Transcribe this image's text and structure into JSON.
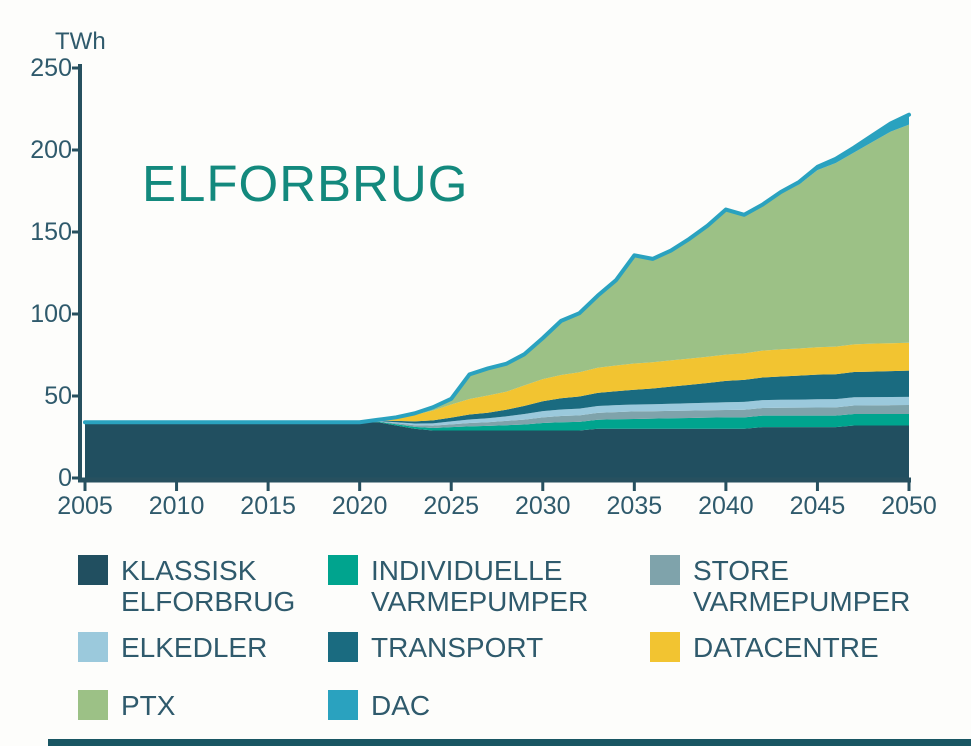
{
  "chart": {
    "unit_label": "TWh",
    "title": "ELFORBRUG",
    "title_color": "#13897d",
    "text_color": "#2f5a6c",
    "axis_color": "#27505f",
    "background": "#fdfdfb"
  },
  "chart_data": {
    "type": "area",
    "stacked": true,
    "title": "ELFORBRUG",
    "ylabel": "TWh",
    "xlabel": "",
    "xlim": [
      2005,
      2050
    ],
    "ylim": [
      0,
      250
    ],
    "xticks": [
      2005,
      2010,
      2015,
      2020,
      2025,
      2030,
      2035,
      2040,
      2045,
      2050
    ],
    "yticks": [
      0,
      50,
      100,
      150,
      200,
      250
    ],
    "grid": false,
    "legend_position": "bottom",
    "outline_color": "#2aa2bf",
    "outline_width": 4,
    "years": [
      2005,
      2010,
      2015,
      2020,
      2021,
      2022,
      2023,
      2024,
      2025,
      2026,
      2027,
      2028,
      2029,
      2030,
      2031,
      2032,
      2033,
      2034,
      2035,
      2036,
      2037,
      2038,
      2039,
      2040,
      2041,
      2042,
      2043,
      2044,
      2045,
      2046,
      2047,
      2048,
      2049,
      2050
    ],
    "series": [
      {
        "id": "klassisk-elforbrug",
        "name": "KLASSISK ELFORBRUG",
        "color": "#214f60",
        "values": [
          34,
          34,
          34,
          34,
          34,
          32,
          30,
          29,
          29,
          29,
          29,
          29,
          29,
          29,
          29,
          29,
          30,
          30,
          30,
          30,
          30,
          30,
          30,
          30,
          30,
          31,
          31,
          31,
          31,
          31,
          32,
          32,
          32,
          32
        ]
      },
      {
        "id": "individuelle-varmepumper",
        "name": "INDIVIDUELLE VARMEPUMPER",
        "color": "#00a48e",
        "values": [
          0,
          0,
          0,
          0,
          0.3,
          0.8,
          1.2,
          1.5,
          2,
          2.5,
          2.8,
          3.2,
          3.6,
          4.5,
          5,
          5.2,
          5.5,
          5.8,
          6,
          6.2,
          6.4,
          6.6,
          6.8,
          7,
          7,
          7,
          7,
          7,
          7,
          7,
          7,
          7,
          7,
          7
        ]
      },
      {
        "id": "store-varmepumper",
        "name": "STORE VARMEPUMPER",
        "color": "#7fa3ab",
        "values": [
          0,
          0,
          0,
          0,
          0.2,
          0.6,
          1,
          1.4,
          1.7,
          2,
          2.2,
          2.6,
          3,
          3.5,
          3.8,
          4,
          4.2,
          4.4,
          4.6,
          4.5,
          4.5,
          4.5,
          4.5,
          4.5,
          4.6,
          4.7,
          4.8,
          4.9,
          5,
          5.1,
          5.2,
          5.3,
          5.4,
          5.5
        ]
      },
      {
        "id": "elkedler",
        "name": "ELKEDLER",
        "color": "#9bc9dc",
        "values": [
          0,
          0,
          0,
          0,
          0.2,
          0.6,
          1,
          1.4,
          1.8,
          2.2,
          2.4,
          2.8,
          3.4,
          3.8,
          4,
          4.1,
          4.2,
          4.2,
          4.2,
          4.3,
          4.4,
          4.5,
          4.6,
          4.7,
          4.8,
          4.8,
          4.9,
          4.9,
          5,
          5,
          5,
          5,
          5,
          5
        ]
      },
      {
        "id": "transport",
        "name": "TRANSPORT",
        "color": "#1a6b80",
        "values": [
          0,
          0,
          0,
          0,
          0.3,
          0.8,
          1.3,
          1.8,
          2.3,
          3,
          3.4,
          4,
          5,
          6,
          6.8,
          7.4,
          8,
          8.5,
          9,
          9.6,
          10.4,
          11.2,
          12,
          13,
          13.4,
          13.8,
          14.2,
          14.6,
          15,
          15.2,
          15.4,
          15.6,
          15.8,
          16
        ]
      },
      {
        "id": "datacentre",
        "name": "DATACENTRE",
        "color": "#f2c431",
        "values": [
          0,
          0,
          0,
          0,
          0.5,
          2,
          4,
          6,
          8,
          9.5,
          10.5,
          11,
          12.5,
          13.5,
          14.2,
          14.8,
          15.3,
          15.7,
          16,
          16,
          16,
          16,
          16,
          16,
          16.2,
          16.4,
          16.5,
          16.6,
          16.7,
          16.8,
          16.9,
          17,
          17,
          17
        ]
      },
      {
        "id": "ptx",
        "name": "PTX",
        "color": "#9cc186",
        "values": [
          0,
          0,
          0,
          0,
          0,
          0.2,
          0.9,
          2,
          3.5,
          15,
          16.5,
          17,
          19,
          25,
          33,
          36,
          44,
          52,
          66,
          63,
          67,
          73,
          80,
          88,
          84,
          88,
          95,
          100,
          108,
          112,
          117,
          123,
          129,
          133
        ]
      },
      {
        "id": "dac",
        "name": "DAC",
        "color": "#2aa2bf",
        "values": [
          0,
          0,
          0,
          0,
          0,
          0,
          0,
          0,
          0,
          0,
          0,
          0,
          0,
          0,
          0,
          0,
          0,
          0,
          0,
          0,
          0,
          0,
          0,
          0.5,
          0.5,
          1,
          1,
          1.5,
          2,
          2.5,
          3,
          4,
          5,
          6
        ]
      }
    ]
  },
  "legend": {
    "items": [
      {
        "lines": [
          "KLASSISK",
          "ELFORBRUG"
        ],
        "color": "#214f60",
        "col": 0,
        "row": 0
      },
      {
        "lines": [
          "INDIVIDUELLE",
          "VARMEPUMPER"
        ],
        "color": "#00a48e",
        "col": 1,
        "row": 0
      },
      {
        "lines": [
          "STORE",
          "VARMEPUMPER"
        ],
        "color": "#7fa3ab",
        "col": 2,
        "row": 0
      },
      {
        "lines": [
          "ELKEDLER"
        ],
        "color": "#9bc9dc",
        "col": 0,
        "row": 1
      },
      {
        "lines": [
          "TRANSPORT"
        ],
        "color": "#1a6b80",
        "col": 1,
        "row": 1
      },
      {
        "lines": [
          "DATACENTRE"
        ],
        "color": "#f2c431",
        "col": 2,
        "row": 1
      },
      {
        "lines": [
          "PTX"
        ],
        "color": "#9cc186",
        "col": 0,
        "row": 2
      },
      {
        "lines": [
          "DAC"
        ],
        "color": "#2aa2bf",
        "col": 1,
        "row": 2
      }
    ]
  }
}
